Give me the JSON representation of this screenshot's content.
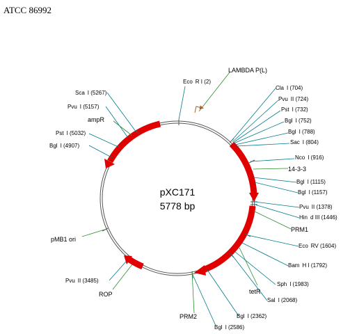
{
  "header": {
    "title": "ATCC 86992"
  },
  "plasmid": {
    "name": "pXC171",
    "size": "5778 bp"
  },
  "colors": {
    "feature": "#ff0000",
    "site_line": "#007a8c",
    "feature_line": "#2e8b2e",
    "backbone": "#555555"
  },
  "sites": [
    {
      "label": "Eco",
      "suffix": "R I (2)"
    },
    {
      "label": "Cla",
      "suffix": "I (704)"
    },
    {
      "label": "Pvu",
      "suffix": "II (724)"
    },
    {
      "label": "Pst",
      "suffix": "I (732)"
    },
    {
      "label": "Bgl",
      "suffix": "I (752)"
    },
    {
      "label": "Bgl",
      "suffix": "I (788)"
    },
    {
      "label": "Sac",
      "suffix": "I (804)"
    },
    {
      "label": "Nco",
      "suffix": "I (916)"
    },
    {
      "label": "Bgl",
      "suffix": "I (1115)"
    },
    {
      "label": "Bgl",
      "suffix": "I (1157)"
    },
    {
      "label": "Pvu",
      "suffix": "II (1378)"
    },
    {
      "label": "Hin",
      "suffix": "d III (1446)"
    },
    {
      "label": "Eco",
      "suffix": "RV (1604)"
    },
    {
      "label": "Bam",
      "suffix": "H I (1792)"
    },
    {
      "label": "Sph",
      "suffix": "I (1983)"
    },
    {
      "label": "Sal",
      "suffix": "I (2068)"
    },
    {
      "label": "Bgl",
      "suffix": "I (2362)"
    },
    {
      "label": "Bgl",
      "suffix": "I (2586)"
    },
    {
      "label": "Pvu",
      "suffix": "II (3485)"
    },
    {
      "label": "Bgl",
      "suffix": "I (4907)"
    },
    {
      "label": "Pst",
      "suffix": "I (5032)"
    },
    {
      "label": "Pvu",
      "suffix": "I (5157)"
    },
    {
      "label": "Sca",
      "suffix": "I (5267)"
    }
  ],
  "features": [
    {
      "label": "LAMBDA P(L)"
    },
    {
      "label": "14-3-3"
    },
    {
      "label": "PRM1"
    },
    {
      "label": "tetR"
    },
    {
      "label": "PRM2"
    },
    {
      "label": "ROP"
    },
    {
      "label": "pMB1 ori"
    },
    {
      "label": "ampR"
    }
  ]
}
